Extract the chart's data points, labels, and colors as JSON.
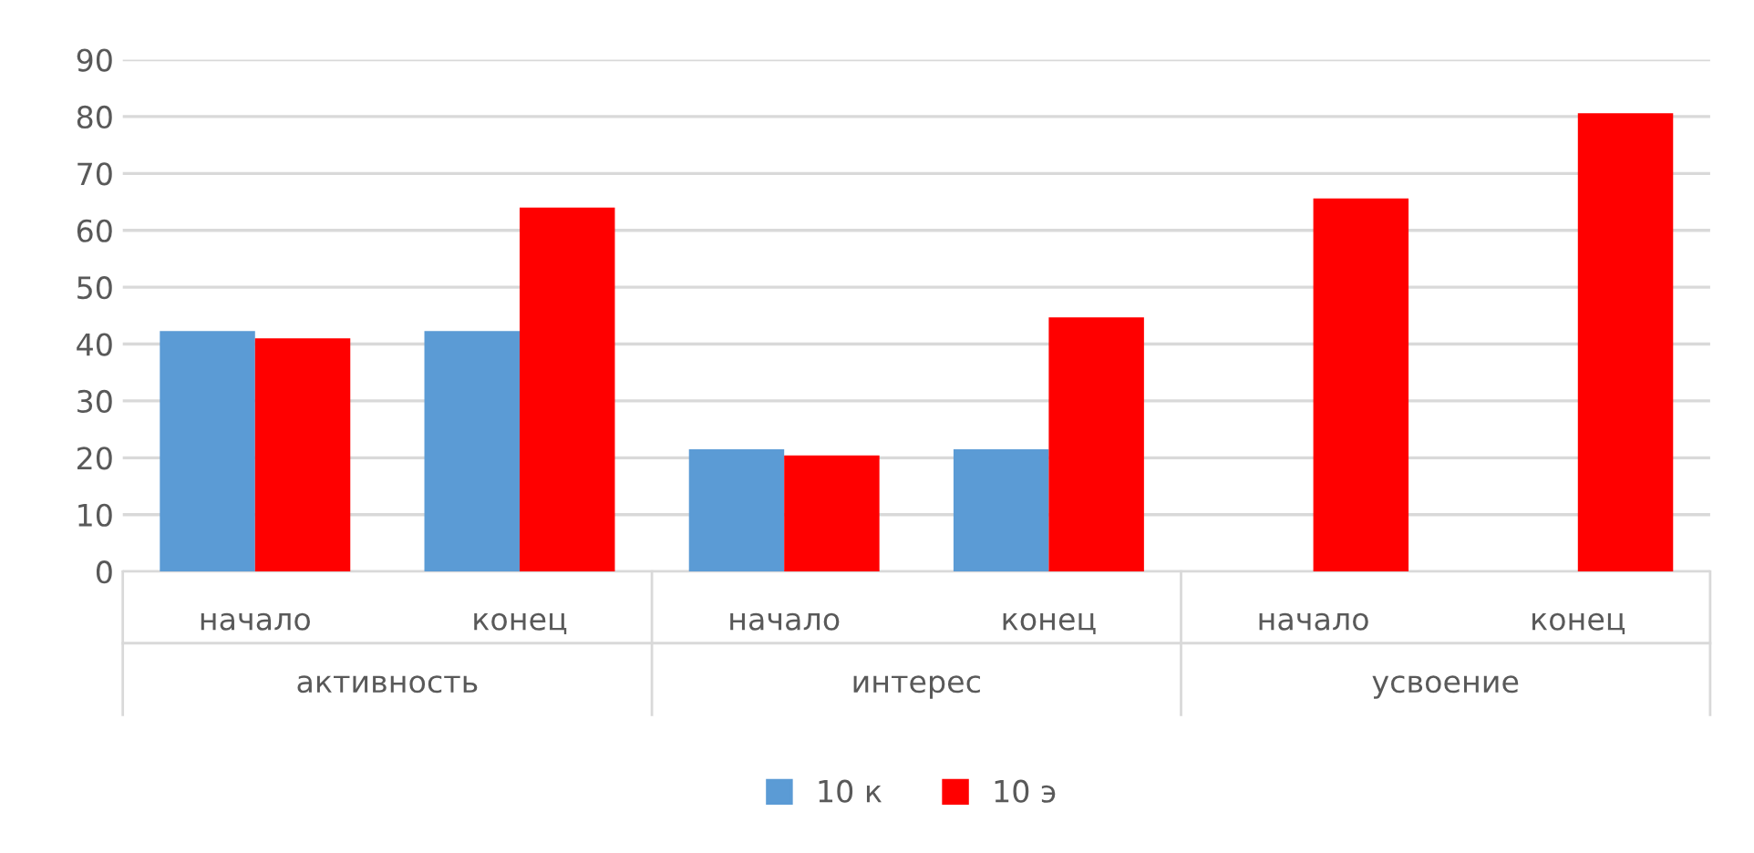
{
  "chart_data": {
    "type": "bar",
    "categories": [
      "начало",
      "конец",
      "начало",
      "конец",
      "начало",
      "конец"
    ],
    "annotations": [
      "активность",
      "интерес",
      "усвоение"
    ],
    "series": [
      {
        "name": "10 к",
        "color": "#5b9bd5",
        "values": [
          42.3,
          42.3,
          21.5,
          21.5,
          null,
          null
        ]
      },
      {
        "name": "10 э",
        "color": "#ff0000",
        "values": [
          41,
          64,
          20.4,
          44.7,
          65.6,
          80.6
        ]
      }
    ],
    "ylim": [
      0,
      90
    ],
    "yticks": [
      0,
      10,
      20,
      30,
      40,
      50,
      60,
      70,
      80,
      90
    ],
    "grid": "y",
    "legend": "bottom"
  }
}
